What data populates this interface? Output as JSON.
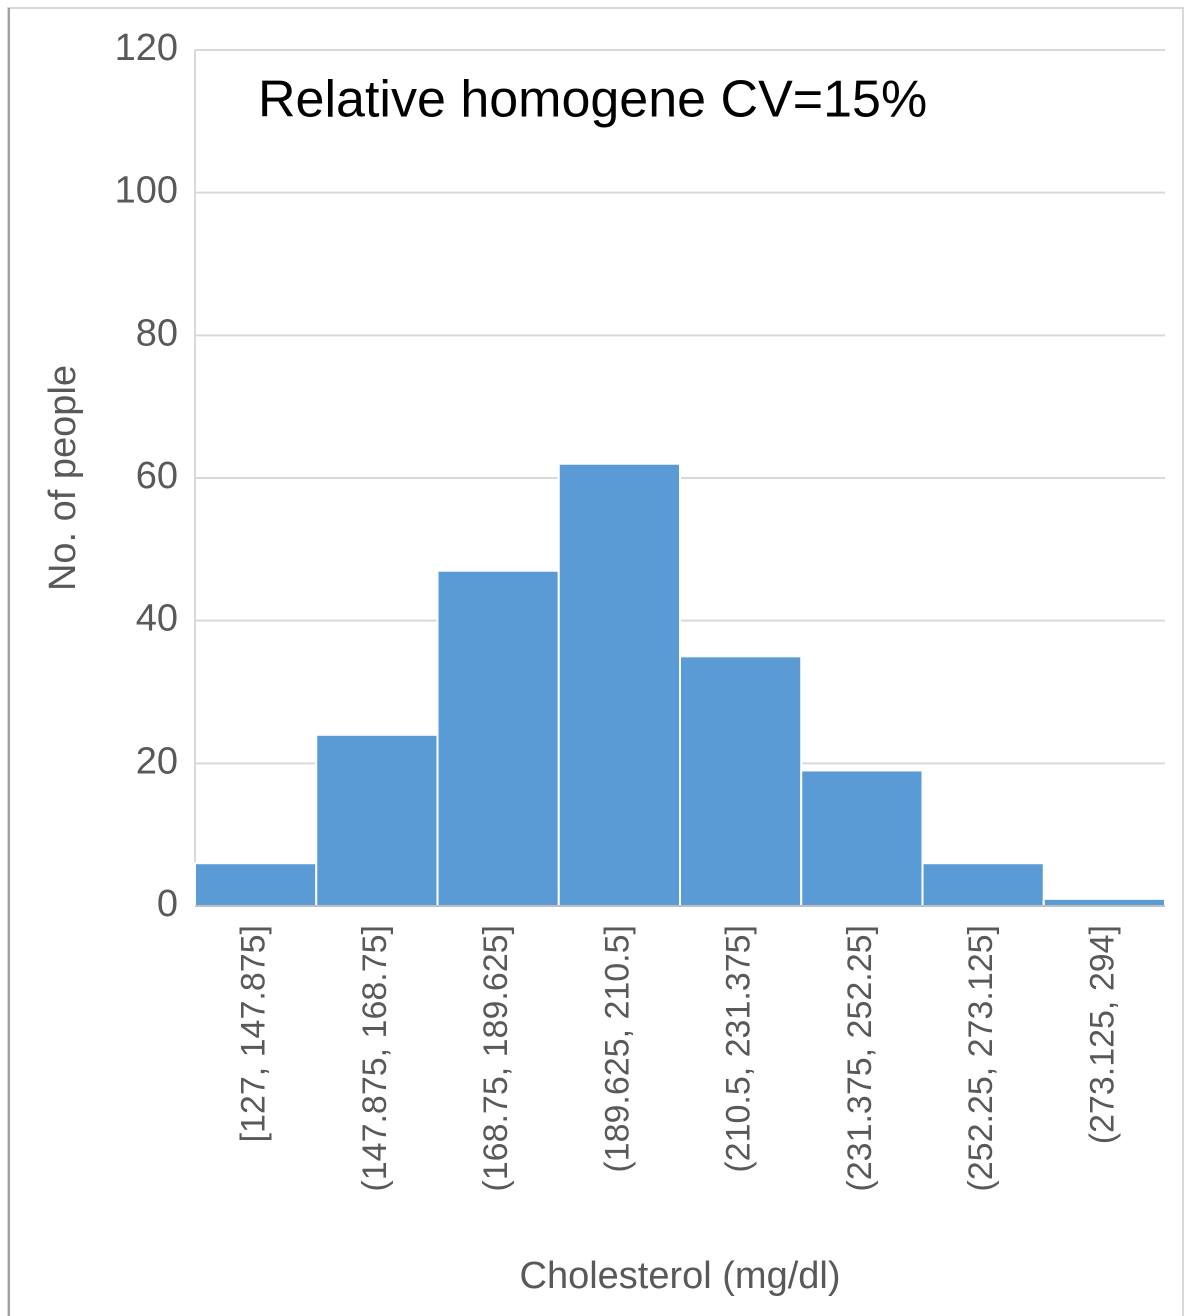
{
  "chart_data": {
    "type": "bar",
    "title": "Relative homogene CV=15%",
    "x_label": "Cholesterol (mg/dl)",
    "y_label": "No. of people",
    "categories": [
      "[127, 147.875]",
      "(147.875, 168.75]",
      "(168.75, 189.625]",
      "(189.625, 210.5]",
      "(210.5, 231.375]",
      "(231.375, 252.25]",
      "(252.25, 273.125]",
      "(273.125, 294]"
    ],
    "values": [
      6,
      24,
      47,
      62,
      35,
      19,
      6,
      1
    ],
    "color": "#5b9bd5",
    "ylim": [
      0,
      120
    ],
    "yticks": [
      0,
      20,
      40,
      60,
      80,
      100,
      120
    ],
    "grid": true
  }
}
